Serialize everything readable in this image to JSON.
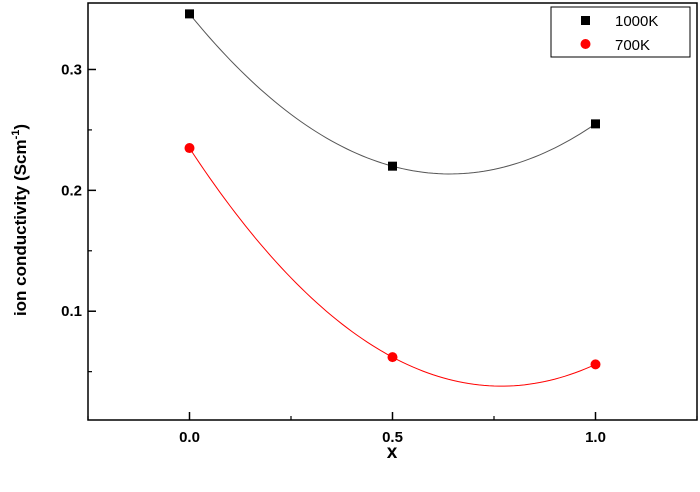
{
  "chart_data": {
    "type": "scatter",
    "xlabel": "x",
    "ylabel_main": "ion conductivity (Scm",
    "ylabel_sup": "-1",
    "ylabel_close": ")",
    "xlim": [
      -0.25,
      1.25
    ],
    "ylim": [
      0.01,
      0.355
    ],
    "xticks": [
      0.0,
      0.5,
      1.0
    ],
    "xtick_labels": [
      "0.0",
      "0.5",
      "1.0"
    ],
    "xminor": [
      -0.25,
      0.25,
      0.75,
      1.25
    ],
    "yticks": [
      0.1,
      0.2,
      0.3
    ],
    "ytick_labels": [
      "0.1",
      "0.2",
      "0.3"
    ],
    "yminor": [
      0.05,
      0.15,
      0.25
    ],
    "grid": false,
    "legend_position": "top-right",
    "series": [
      {
        "name": "1000K",
        "marker": "square",
        "color": "#000000",
        "line_color": "#555555",
        "x": [
          0.0,
          0.5,
          1.0
        ],
        "y": [
          0.346,
          0.22,
          0.255
        ]
      },
      {
        "name": "700K",
        "marker": "circle",
        "color": "#ff0000",
        "line_color": "#ff0000",
        "x": [
          0.0,
          0.5,
          1.0
        ],
        "y": [
          0.235,
          0.062,
          0.056
        ]
      }
    ]
  }
}
